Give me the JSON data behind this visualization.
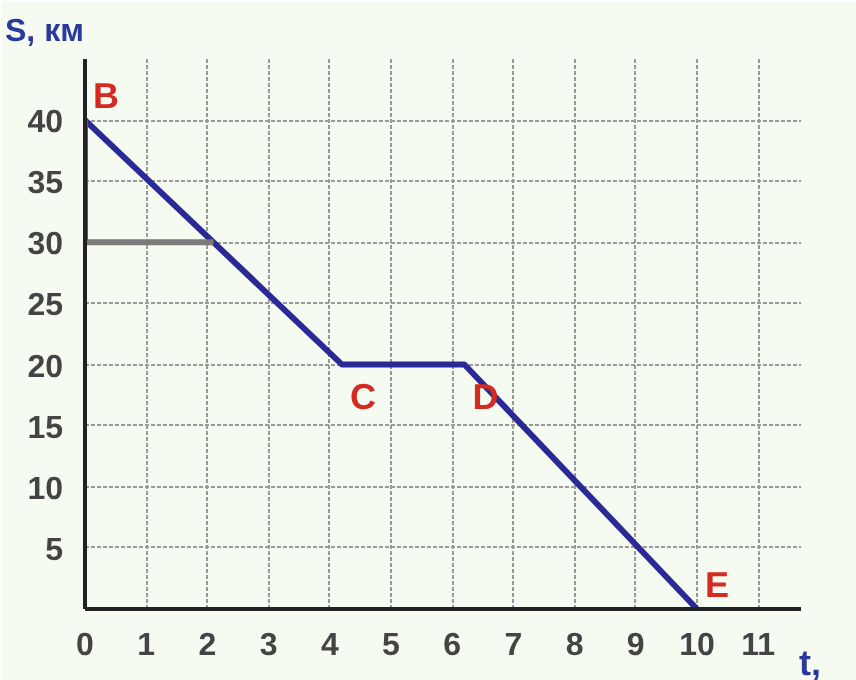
{
  "chart_data": {
    "type": "line",
    "xlabel": "t,",
    "ylabel": "S, км",
    "series": [
      {
        "x": [
          0,
          4.2,
          6.2,
          10
        ],
        "values": [
          40,
          20,
          20,
          0
        ],
        "color": "#2a2a96"
      },
      {
        "x": [
          0,
          0
        ],
        "values": [
          30,
          40
        ],
        "color": "#e0201c"
      },
      {
        "x": [
          0,
          2.1
        ],
        "values": [
          30,
          30
        ],
        "color": "#7a7a7a"
      }
    ],
    "xlim": [
      0,
      11.7
    ],
    "ylim": [
      0,
      45
    ],
    "xticks": [
      0,
      1,
      2,
      3,
      4,
      5,
      6,
      7,
      8,
      9,
      10,
      11
    ],
    "yticks": [
      {
        "value": 0,
        "label": null
      },
      5,
      10,
      15,
      20,
      25,
      30,
      35,
      40
    ],
    "grid": true,
    "annotations": [
      {
        "text": "B",
        "x": 0,
        "y": 40
      },
      {
        "text": "C",
        "x": 4.2,
        "y": 20
      },
      {
        "text": "D",
        "x": 6.2,
        "y": 20
      },
      {
        "text": "E",
        "x": 10,
        "y": 0
      }
    ]
  }
}
